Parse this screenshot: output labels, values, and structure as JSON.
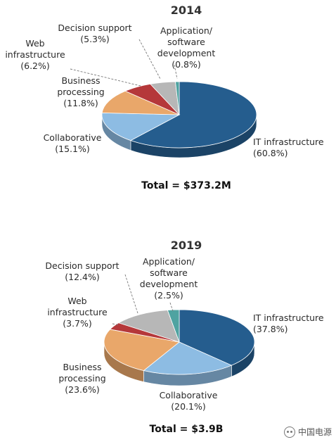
{
  "chart_data": [
    {
      "type": "pie",
      "title": "2014",
      "total_label": "Total = $373.2M",
      "slices": [
        {
          "label_lines": [
            "IT infrastructure",
            "(60.8%)"
          ],
          "value": 60.8,
          "color": "#255d8e"
        },
        {
          "label_lines": [
            "Collaborative",
            "(15.1%)"
          ],
          "value": 15.1,
          "color": "#8dbce3"
        },
        {
          "label_lines": [
            "Business",
            "processing",
            "(11.8%)"
          ],
          "value": 11.8,
          "color": "#e9a76a"
        },
        {
          "label_lines": [
            "Web",
            "infrastructure",
            "(6.2%)"
          ],
          "value": 6.2,
          "color": "#b5383a"
        },
        {
          "label_lines": [
            "Decision support",
            "(5.3%)"
          ],
          "value": 5.3,
          "color": "#b7b7b7"
        },
        {
          "label_lines": [
            "Application/",
            "software",
            "development",
            "(0.8%)"
          ],
          "value": 0.8,
          "color": "#4fa3a1"
        }
      ]
    },
    {
      "type": "pie",
      "title": "2019",
      "total_label": "Total = $3.9B",
      "slices": [
        {
          "label_lines": [
            "IT infrastructure",
            "(37.8%)"
          ],
          "value": 37.8,
          "color": "#255d8e"
        },
        {
          "label_lines": [
            "Collaborative",
            "(20.1%)"
          ],
          "value": 20.1,
          "color": "#8dbce3"
        },
        {
          "label_lines": [
            "Business",
            "processing",
            "(23.6%)"
          ],
          "value": 23.6,
          "color": "#e9a76a"
        },
        {
          "label_lines": [
            "Web",
            "infrastructure",
            "(3.7%)"
          ],
          "value": 3.7,
          "color": "#b5383a"
        },
        {
          "label_lines": [
            "Decision support",
            "(12.4%)"
          ],
          "value": 12.4,
          "color": "#b7b7b7"
        },
        {
          "label_lines": [
            "Application/",
            "software",
            "development",
            "(2.5%)"
          ],
          "value": 2.5,
          "color": "#4fa3a1"
        }
      ]
    }
  ],
  "watermark": {
    "text": "中国电源",
    "icon": "wechat-icon"
  }
}
